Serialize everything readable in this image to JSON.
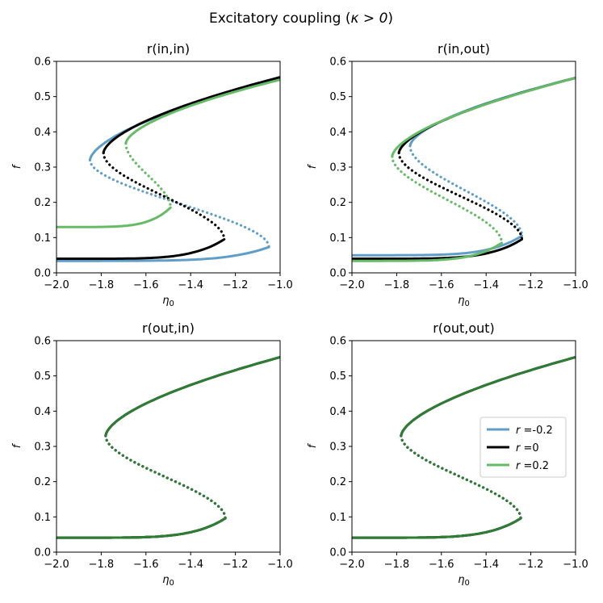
{
  "figure": {
    "title_prefix": "Excitatory coupling (",
    "title_symbol": "κ > 0",
    "title_suffix": ")"
  },
  "legend": {
    "entries": [
      {
        "label": "r =-0.2",
        "color": "#5f9ec9"
      },
      {
        "label": "r =0",
        "color": "#000000"
      },
      {
        "label": "r =0.2",
        "color": "#66bb66"
      }
    ]
  },
  "chart_data": [
    {
      "type": "line",
      "title": "r(in,in)",
      "xlabel": "η0",
      "ylabel": "f",
      "xlim": [
        -2.0,
        -1.0
      ],
      "ylim": [
        0.0,
        0.6
      ],
      "xticks": [
        -2.0,
        -1.8,
        -1.6,
        -1.4,
        -1.2,
        -1.0
      ],
      "yticks": [
        0.0,
        0.1,
        0.2,
        0.3,
        0.4,
        0.5,
        0.6
      ],
      "series": [
        {
          "name": "r =-0.2",
          "color": "#5f9ec9",
          "params": [
            -1.85,
            0.32,
            -1.05,
            0.073,
            0.55
          ]
        },
        {
          "name": "r =0",
          "color": "#000000",
          "params": [
            -1.79,
            0.34,
            -1.25,
            0.095,
            0.555
          ]
        },
        {
          "name": "r =0.2",
          "color": "#66bb66",
          "params": [
            -1.69,
            0.367,
            -1.49,
            0.185,
            0.548
          ]
        }
      ]
    },
    {
      "type": "line",
      "title": "r(in,out)",
      "xlabel": "η0",
      "ylabel": "f",
      "xlim": [
        -2.0,
        -1.0
      ],
      "ylim": [
        0.0,
        0.6
      ],
      "xticks": [
        -2.0,
        -1.8,
        -1.6,
        -1.4,
        -1.2,
        -1.0
      ],
      "yticks": [
        0.0,
        0.1,
        0.2,
        0.3,
        0.4,
        0.5,
        0.6
      ],
      "series": [
        {
          "name": "r =-0.2",
          "color": "#5f9ec9",
          "params": [
            -1.74,
            0.36,
            -1.24,
            0.105,
            0.553
          ]
        },
        {
          "name": "r =0",
          "color": "#000000",
          "params": [
            -1.79,
            0.34,
            -1.24,
            0.095,
            0.553
          ]
        },
        {
          "name": "r =0.2",
          "color": "#66bb66",
          "params": [
            -1.82,
            0.33,
            -1.33,
            0.085,
            0.553
          ]
        }
      ]
    },
    {
      "type": "line",
      "title": "r(out,in)",
      "xlabel": "η0",
      "ylabel": "f",
      "xlim": [
        -2.0,
        -1.0
      ],
      "ylim": [
        0.0,
        0.6
      ],
      "xticks": [
        -2.0,
        -1.8,
        -1.6,
        -1.4,
        -1.2,
        -1.0
      ],
      "yticks": [
        0.0,
        0.1,
        0.2,
        0.3,
        0.4,
        0.5,
        0.6
      ],
      "series": [
        {
          "name": "r =-0.2",
          "color": "#5f9ec9",
          "params": [
            -1.78,
            0.33,
            -1.245,
            0.096,
            0.553
          ]
        },
        {
          "name": "r =0",
          "color": "#000000",
          "params": [
            -1.78,
            0.33,
            -1.245,
            0.096,
            0.553
          ]
        },
        {
          "name": "r =0.2",
          "color": "#2e7d32",
          "params": [
            -1.78,
            0.33,
            -1.245,
            0.096,
            0.553
          ]
        }
      ]
    },
    {
      "type": "line",
      "title": "r(out,out)",
      "xlabel": "η0",
      "ylabel": "f",
      "xlim": [
        -2.0,
        -1.0
      ],
      "ylim": [
        0.0,
        0.6
      ],
      "xticks": [
        -2.0,
        -1.8,
        -1.6,
        -1.4,
        -1.2,
        -1.0
      ],
      "yticks": [
        0.0,
        0.1,
        0.2,
        0.3,
        0.4,
        0.5,
        0.6
      ],
      "series": [
        {
          "name": "r =-0.2",
          "color": "#5f9ec9",
          "params": [
            -1.78,
            0.33,
            -1.245,
            0.096,
            0.553
          ]
        },
        {
          "name": "r =0",
          "color": "#000000",
          "params": [
            -1.78,
            0.33,
            -1.245,
            0.096,
            0.553
          ]
        },
        {
          "name": "r =0.2",
          "color": "#2e7d32",
          "params": [
            -1.78,
            0.33,
            -1.245,
            0.096,
            0.553
          ]
        }
      ]
    }
  ]
}
